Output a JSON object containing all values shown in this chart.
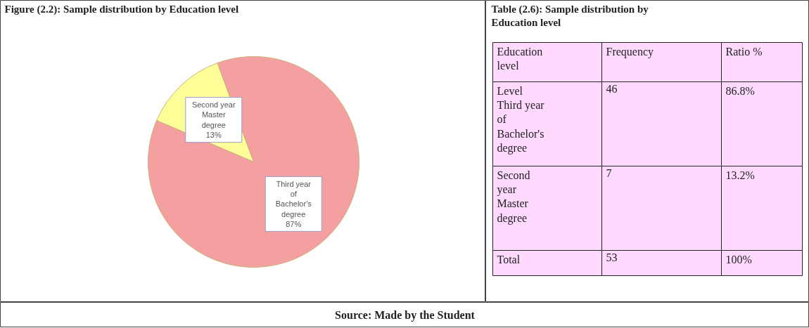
{
  "chart_data": [
    {
      "type": "pie",
      "title": "Figure (2.2): Sample distribution by Education level",
      "categories": [
        "Second year Master degree",
        "Third year of Bachelor's degree"
      ],
      "values": [
        13,
        87
      ],
      "colors": [
        "#ffff99",
        "#f4a0a0"
      ],
      "value_labels": [
        "13%",
        "87%"
      ],
      "annotations": [
        "Source: Made by the Student"
      ]
    },
    {
      "type": "other",
      "title": "Table (2.6): Sample distribution by Education level",
      "annotations": [
        "Education level",
        "Frequency",
        "Ratio %",
        "Level Third year of Bachelor's degree",
        "46",
        "86.8%",
        "Second year Master degree",
        "7",
        "13.2%",
        "Total",
        "53",
        "100%"
      ]
    }
  ]
}
